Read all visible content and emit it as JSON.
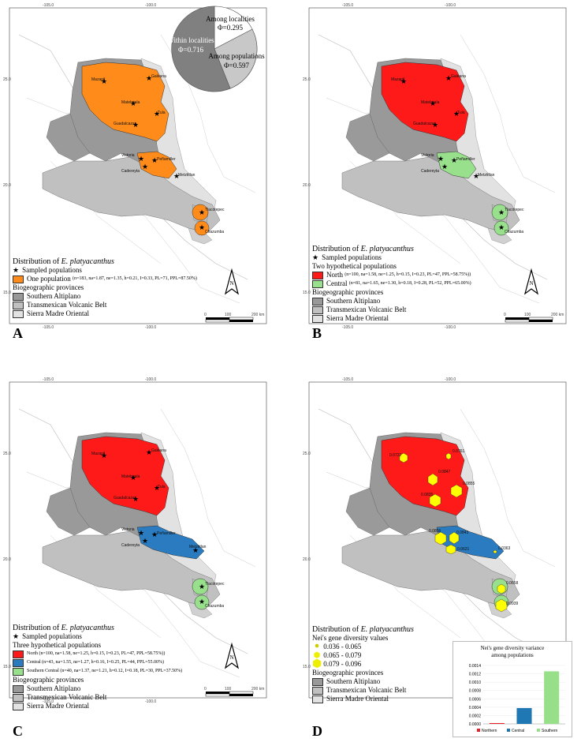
{
  "panels": [
    {
      "letter": "A"
    },
    {
      "letter": "B"
    },
    {
      "letter": "C"
    },
    {
      "letter": "D"
    }
  ],
  "coords": {
    "top_lon": [
      "-105.0",
      "-100.0"
    ],
    "lat": [
      "25.0",
      "20.0",
      "15.0"
    ],
    "bottom_lon": [
      "-105.0",
      "-100.0"
    ]
  },
  "pie": {
    "within_label": "Within localities",
    "within_phi": "Φ=0.716",
    "among_loc_label": "Among localities",
    "among_loc_phi": "Φ=0.295",
    "among_pop_label": "Among populations",
    "among_pop_phi": "Φ=0.597"
  },
  "localities": {
    "galeana": "Galeana",
    "mazapil": "Mazapil",
    "matehuala": "Matehuala",
    "tula": "Tula",
    "guadalcazar": "Guadalcazar",
    "victoria": "Victoria",
    "penamiller": "Peñamiller",
    "cadereyta": "Cadereyta",
    "metztitlan": "Metztitlan",
    "tlacotepec": "Tlacotepec",
    "chazumba": "Chazumba"
  },
  "d_values": {
    "v1": "0.0722",
    "v2": "0.0761",
    "v3": "0.0847",
    "v4": "0.0835",
    "v5": "0.0855",
    "v6": "0.0856",
    "v7": "0.0843",
    "v8": "0.0621",
    "v9": "0.0363",
    "v10": "0.0658",
    "v11": "0.0939"
  },
  "legend": {
    "title_prefix": "Distribution of ",
    "species": "E. platyacanthus",
    "sampled": "Sampled populations",
    "bio_title": "Biogeographic provinces",
    "bio_sa": "Southern Altiplano",
    "bio_tvb": "Transmexican Volcanic Belt",
    "bio_smo": "Sierra Madre Oriental",
    "one_pop_label": "One population",
    "one_pop_stats": "(n=183, na=1.87, ne=1.35, h=0.21, I=0.33, PL=71, PPL=87.50%)",
    "two_title": "Two hypothetical populations",
    "north_label": "North",
    "north_stats_b": "(n=100, na=1.58, ne=1.25, h=0.15, I=0.23, PL=47, PPL=58.75%))",
    "central_label": "Central",
    "central_stats_b": "(n=81, na=1.65, ne=1.30, h=0.18, I=0.28, PL=52, PPL=65.00%)",
    "three_title": "Three hypothetical populations",
    "north_stats_c": "North (n=100, na=1.58, ne=1.25, h=0.15, I=0.23, PL=47, PPL=58.75%))",
    "central_stats_c": "Central (n=43, na=1.55, ne=1.27, h=0.16, I=0.25, PL=44, PPL=55.00%)",
    "south_stats_c": "Southern Central (n=40, na=1.37, ne=1.21, h=0.12, I=0.18, PL=30, PPL=37.50%)",
    "nei_title": "Nei's gene diversity values",
    "nei_1": "0.036 - 0.065",
    "nei_2": "0.065 - 0.079",
    "nei_3": "0.079 - 0.096"
  },
  "scale": {
    "zero": "0",
    "mid": "100",
    "end": "200 km",
    "north": "N"
  },
  "chart_data": {
    "type": "bar",
    "title": "Nei's gene diversity variance among populations",
    "categories": [
      "Northern",
      "Central",
      "Southern"
    ],
    "values": [
      2e-05,
      0.00038,
      0.00126
    ],
    "ylim": [
      0,
      0.0014
    ],
    "yticks": [
      "0.0014",
      "0.0012",
      "0.0010",
      "0.0008",
      "0.0006",
      "0.0004",
      "0.0002",
      "0.0000"
    ],
    "colors": [
      "#e8202a",
      "#1f77b4",
      "#98df8a"
    ]
  },
  "colors": {
    "orange": "#ff8c1a",
    "red": "#ff1a1a",
    "green": "#98e08c",
    "blue": "#2a7bc0",
    "yellow": "#ffff00",
    "sa": "#999999",
    "tvb": "#c0c0c0",
    "smo": "#e2e2e2"
  }
}
